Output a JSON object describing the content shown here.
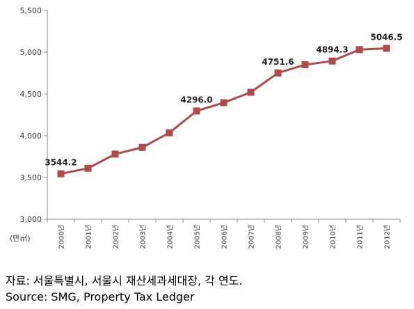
{
  "chart_data": {
    "type": "line",
    "categories": [
      "2000년",
      "2001년",
      "2002년",
      "2003년",
      "2004년",
      "2005년",
      "2006년",
      "2007년",
      "2008년",
      "2009년",
      "2010년",
      "2011년",
      "2012년"
    ],
    "series": [
      {
        "values": [
          3544.2,
          3610,
          3780,
          3860,
          4035,
          4296.0,
          4395,
          4520,
          4751.6,
          4850,
          4894.3,
          5030,
          5046.5
        ]
      }
    ],
    "data_labels": [
      {
        "index": 0,
        "text": "3544.2"
      },
      {
        "index": 5,
        "text": "4296.0"
      },
      {
        "index": 8,
        "text": "4751.6"
      },
      {
        "index": 10,
        "text": "4894.3"
      },
      {
        "index": 12,
        "text": "5046.5"
      }
    ],
    "y_ticks": [
      "3,000",
      "3,500",
      "4,000",
      "4,500",
      "5,000",
      "5,500"
    ],
    "y_tick_values": [
      3000,
      3500,
      4000,
      4500,
      5000,
      5500
    ],
    "ylim": [
      3000,
      5500
    ],
    "unit_label": "(만㎡)",
    "line_color": "#b04a4a",
    "marker_color": "#b04a4a",
    "grid": false
  },
  "source": {
    "korean": "자료: 서울특별시, 서울시 재산세과세대장, 각 연도.",
    "english": "Source: SMG, Property Tax Ledger"
  }
}
